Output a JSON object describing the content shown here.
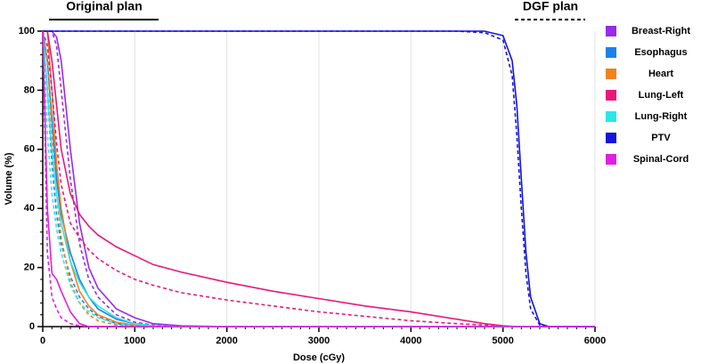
{
  "chart_data": {
    "type": "line",
    "x_label": "Dose (cGy)",
    "y_label": "Volume (%)",
    "annotations": [
      {
        "text": "Original plan",
        "line": "solid"
      },
      {
        "text": "DGF plan",
        "line": "dashed"
      }
    ],
    "x": [
      0,
      50,
      100,
      150,
      200,
      300,
      400,
      500,
      600,
      800,
      1000,
      1200,
      1500,
      2000,
      2500,
      3000,
      3500,
      4000,
      4500,
      4800,
      5000,
      5100,
      5150,
      5200,
      5250,
      5300,
      5400,
      5500,
      6000
    ],
    "series": [
      {
        "name": "Breast-Right",
        "color": "#9a2be6",
        "values": [
          100,
          100,
          100,
          98,
          90,
          60,
          35,
          20,
          13,
          6,
          3,
          1,
          0.3,
          0,
          0,
          0,
          0,
          0,
          0,
          0,
          0,
          0,
          0,
          0,
          0,
          0,
          0,
          0,
          0
        ],
        "values_dgf": [
          100,
          100,
          100,
          95,
          80,
          50,
          28,
          16,
          10,
          4,
          1.5,
          0.5,
          0,
          0,
          0,
          0,
          0,
          0,
          0,
          0,
          0,
          0,
          0,
          0,
          0,
          0,
          0,
          0,
          0
        ]
      },
      {
        "name": "Esophagus",
        "color": "#1e80e6",
        "values": [
          100,
          90,
          70,
          50,
          38,
          25,
          16,
          10,
          6,
          2.5,
          1,
          0.3,
          0,
          0,
          0,
          0,
          0,
          0,
          0,
          0,
          0,
          0,
          0,
          0,
          0,
          0,
          0,
          0,
          0
        ],
        "values_dgf": [
          100,
          80,
          55,
          38,
          28,
          17,
          10,
          6,
          3.5,
          1,
          0.3,
          0,
          0,
          0,
          0,
          0,
          0,
          0,
          0,
          0,
          0,
          0,
          0,
          0,
          0,
          0,
          0,
          0,
          0
        ]
      },
      {
        "name": "Heart",
        "color": "#f0821e",
        "values": [
          100,
          100,
          80,
          55,
          40,
          22,
          12,
          7,
          4,
          1.5,
          0.5,
          0,
          0,
          0,
          0,
          0,
          0,
          0,
          0,
          0,
          0,
          0,
          0,
          0,
          0,
          0,
          0,
          0,
          0
        ],
        "values_dgf": [
          100,
          90,
          65,
          45,
          30,
          15,
          8,
          4,
          2,
          0.5,
          0,
          0,
          0,
          0,
          0,
          0,
          0,
          0,
          0,
          0,
          0,
          0,
          0,
          0,
          0,
          0,
          0,
          0,
          0
        ]
      },
      {
        "name": "Lung-Left",
        "color": "#e8187a",
        "values": [
          100,
          100,
          90,
          75,
          60,
          45,
          38,
          34,
          31,
          27,
          24,
          21,
          18.5,
          15,
          12,
          9.5,
          7,
          5,
          2.5,
          1,
          0.3,
          0.1,
          0,
          0,
          0,
          0,
          0,
          0,
          0
        ],
        "values_dgf": [
          100,
          95,
          80,
          62,
          48,
          35,
          30,
          26,
          23,
          19,
          16,
          14,
          11.5,
          9,
          7,
          5,
          3.5,
          2,
          1,
          0.5,
          0.2,
          0,
          0,
          0,
          0,
          0,
          0,
          0,
          0
        ]
      },
      {
        "name": "Lung-Right",
        "color": "#2ee6e6",
        "values": [
          100,
          80,
          60,
          45,
          35,
          22,
          15,
          10,
          7,
          3,
          1,
          0.3,
          0,
          0,
          0,
          0,
          0,
          0,
          0,
          0,
          0,
          0,
          0,
          0,
          0,
          0,
          0,
          0,
          0
        ],
        "values_dgf": [
          100,
          65,
          45,
          33,
          25,
          14,
          8,
          5,
          3,
          1,
          0.3,
          0,
          0,
          0,
          0,
          0,
          0,
          0,
          0,
          0,
          0,
          0,
          0,
          0,
          0,
          0,
          0,
          0,
          0
        ]
      },
      {
        "name": "PTV",
        "color": "#1414dc",
        "values": [
          100,
          100,
          100,
          100,
          100,
          100,
          100,
          100,
          100,
          100,
          100,
          100,
          100,
          100,
          100,
          100,
          100,
          100,
          100,
          100,
          98.5,
          90,
          75,
          50,
          25,
          10,
          1,
          0,
          0
        ],
        "values_dgf": [
          100,
          100,
          100,
          100,
          100,
          100,
          100,
          100,
          100,
          100,
          100,
          100,
          100,
          100,
          100,
          100,
          100,
          100,
          100,
          99.5,
          97,
          85,
          65,
          40,
          18,
          6,
          0.5,
          0,
          0
        ]
      },
      {
        "name": "Spinal-Cord",
        "color": "#e020e0",
        "values": [
          100,
          40,
          18,
          16,
          12,
          5,
          1,
          0,
          0,
          0,
          0,
          0,
          0,
          0,
          0,
          0,
          0,
          0,
          0,
          0,
          0,
          0,
          0,
          0,
          0,
          0,
          0,
          0,
          0
        ],
        "values_dgf": [
          100,
          25,
          10,
          6,
          3,
          1,
          0.3,
          0,
          0,
          0,
          0,
          0,
          0,
          0,
          0,
          0,
          0,
          0,
          0,
          0,
          0,
          0,
          0,
          0,
          0,
          0,
          0,
          0,
          0
        ]
      }
    ],
    "xlim": [
      0,
      6000
    ],
    "xticks": [
      0,
      1000,
      2000,
      3000,
      4000,
      5000,
      6000
    ],
    "ylim": [
      0,
      100
    ],
    "yticks": [
      0,
      20,
      40,
      60,
      80,
      100
    ],
    "grid": "x",
    "legend": "right"
  }
}
